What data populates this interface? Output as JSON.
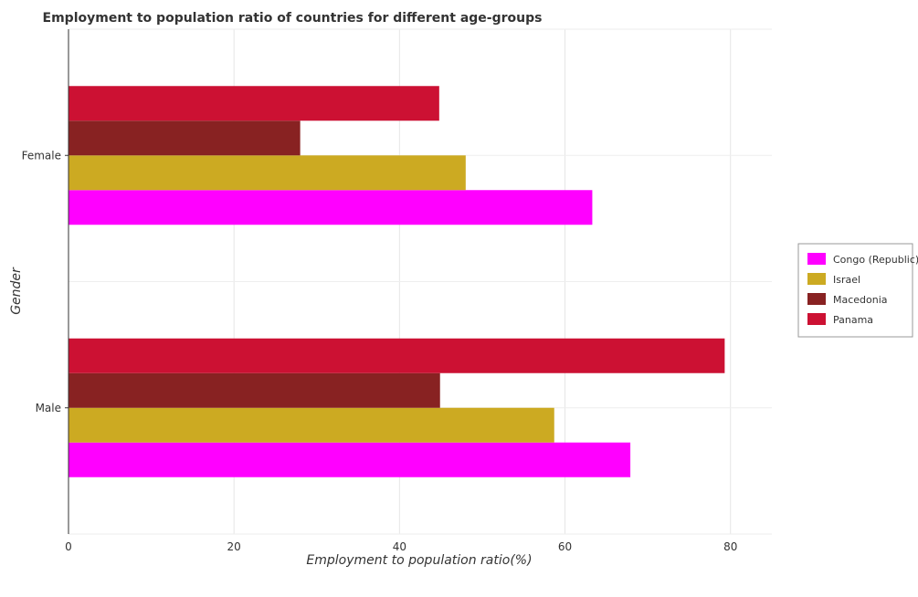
{
  "chart_data": {
    "type": "bar",
    "orientation": "horizontal",
    "title": "Employment to population ratio of countries for different age-groups",
    "xlabel": "Employment to population ratio(%)",
    "ylabel": "Gender",
    "categories": [
      "Female",
      "Male"
    ],
    "xlim": [
      0,
      85
    ],
    "xticks": [
      0,
      20,
      40,
      60,
      80
    ],
    "grid": true,
    "legend_position": "right",
    "series": [
      {
        "name": "Congo (Republic)",
        "color": "#ff00ff",
        "values": [
          63.3,
          67.9
        ]
      },
      {
        "name": "Israel",
        "color": "#ccaa22",
        "values": [
          48.0,
          58.7
        ]
      },
      {
        "name": "Macedonia",
        "color": "#882222",
        "values": [
          28.0,
          44.9
        ]
      },
      {
        "name": "Panama",
        "color": "#cc1133",
        "values": [
          44.8,
          79.3
        ]
      }
    ]
  }
}
